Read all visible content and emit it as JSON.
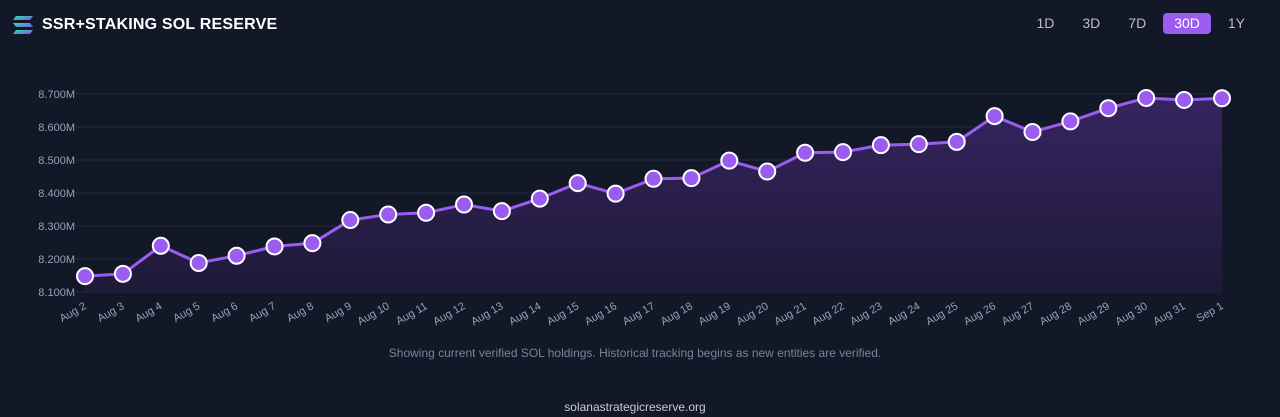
{
  "header": {
    "title": "SSR+STAKING SOL RESERVE",
    "logo_icon": "solana-logo-icon"
  },
  "range_tabs": [
    {
      "label": "1D",
      "active": false
    },
    {
      "label": "3D",
      "active": false
    },
    {
      "label": "7D",
      "active": false
    },
    {
      "label": "30D",
      "active": true
    },
    {
      "label": "1Y",
      "active": false
    }
  ],
  "colors": {
    "line": "#9b5cf0",
    "point_fill": "#9b5cf0",
    "point_stroke": "#ffffff",
    "background": "#121827"
  },
  "chart_data": {
    "type": "area",
    "categories": [
      "Aug 2",
      "Aug 3",
      "Aug 4",
      "Aug 5",
      "Aug 6",
      "Aug 7",
      "Aug 8",
      "Aug 9",
      "Aug 10",
      "Aug 11",
      "Aug 12",
      "Aug 13",
      "Aug 14",
      "Aug 15",
      "Aug 16",
      "Aug 17",
      "Aug 18",
      "Aug 19",
      "Aug 20",
      "Aug 21",
      "Aug 22",
      "Aug 23",
      "Aug 24",
      "Aug 25",
      "Aug 26",
      "Aug 27",
      "Aug 28",
      "Aug 29",
      "Aug 30",
      "Aug 31",
      "Sep 1"
    ],
    "values": [
      8.148,
      8.155,
      8.24,
      8.188,
      8.21,
      8.238,
      8.248,
      8.318,
      8.335,
      8.34,
      8.365,
      8.345,
      8.383,
      8.43,
      8.398,
      8.443,
      8.445,
      8.498,
      8.465,
      8.522,
      8.524,
      8.545,
      8.548,
      8.555,
      8.633,
      8.585,
      8.617,
      8.657,
      8.688,
      8.682,
      8.687
    ],
    "unit": "M",
    "yticks": [
      "8.100M",
      "8.200M",
      "8.300M",
      "8.400M",
      "8.500M",
      "8.600M",
      "8.700M"
    ],
    "ylim": [
      8.1,
      8.7
    ],
    "grid": true
  },
  "note": "Showing current verified SOL holdings. Historical tracking begins as new entities are verified.",
  "footer": "solanastrategicreserve.org"
}
